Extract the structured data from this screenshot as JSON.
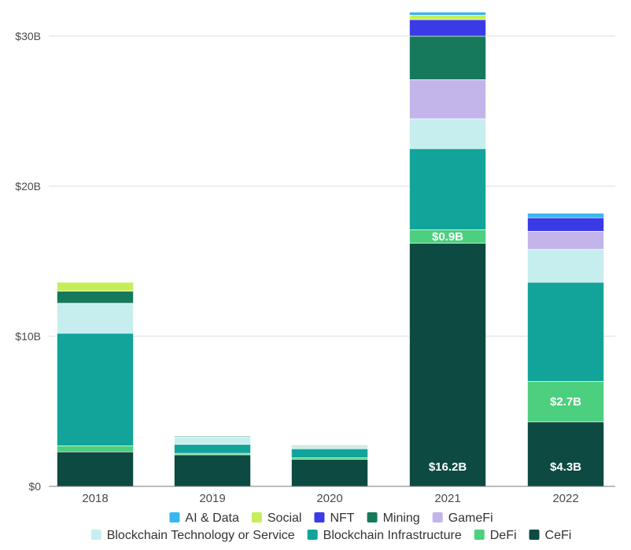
{
  "chart_data": {
    "type": "bar",
    "stacked": true,
    "categories": [
      "2018",
      "2019",
      "2020",
      "2021",
      "2022"
    ],
    "y_ticks": [
      {
        "value": 0,
        "label": "$0"
      },
      {
        "value": 10,
        "label": "$10B"
      },
      {
        "value": 20,
        "label": "$20B"
      },
      {
        "value": 30,
        "label": "$30B"
      }
    ],
    "ylim": [
      0,
      32
    ],
    "grid": true,
    "legend_position": "bottom",
    "series": [
      {
        "name": "CeFi",
        "color": "#0d4a41",
        "values": [
          2.3,
          2.1,
          1.8,
          16.2,
          4.3
        ]
      },
      {
        "name": "DeFi",
        "color": "#4ccf7e",
        "values": [
          0.4,
          0.1,
          0.1,
          0.9,
          2.7
        ]
      },
      {
        "name": "Blockchain Infrastructure",
        "color": "#12a49a",
        "values": [
          7.5,
          0.6,
          0.6,
          5.4,
          6.6
        ]
      },
      {
        "name": "Blockchain Technology or Service",
        "color": "#c7eeee",
        "values": [
          2.0,
          0.5,
          0.15,
          2.0,
          2.2
        ]
      },
      {
        "name": "GameFi",
        "color": "#c3b5ea",
        "values": [
          0.0,
          0.0,
          0.0,
          2.6,
          1.2
        ]
      },
      {
        "name": "Mining",
        "color": "#17795c",
        "values": [
          0.8,
          0.05,
          0.05,
          2.9,
          0.0
        ]
      },
      {
        "name": "NFT",
        "color": "#3a3ae6",
        "values": [
          0.0,
          0.0,
          0.0,
          1.1,
          0.9
        ]
      },
      {
        "name": "Social",
        "color": "#c6ee5a",
        "values": [
          0.6,
          0.0,
          0.0,
          0.3,
          0.0
        ]
      },
      {
        "name": "AI & Data",
        "color": "#38b6ef",
        "values": [
          0.0,
          0.0,
          0.0,
          0.2,
          0.3
        ]
      }
    ],
    "data_labels": [
      {
        "category": "2021",
        "series": "CeFi",
        "text": "$16.2B"
      },
      {
        "category": "2021",
        "series": "DeFi",
        "text": "$0.9B"
      },
      {
        "category": "2022",
        "series": "CeFi",
        "text": "$4.3B"
      },
      {
        "category": "2022",
        "series": "DeFi",
        "text": "$2.7B"
      }
    ],
    "legend_rows": [
      [
        "AI & Data",
        "Social",
        "NFT",
        "Mining",
        "GameFi"
      ],
      [
        "Blockchain Technology or Service",
        "Blockchain Infrastructure",
        "DeFi",
        "CeFi"
      ]
    ]
  }
}
